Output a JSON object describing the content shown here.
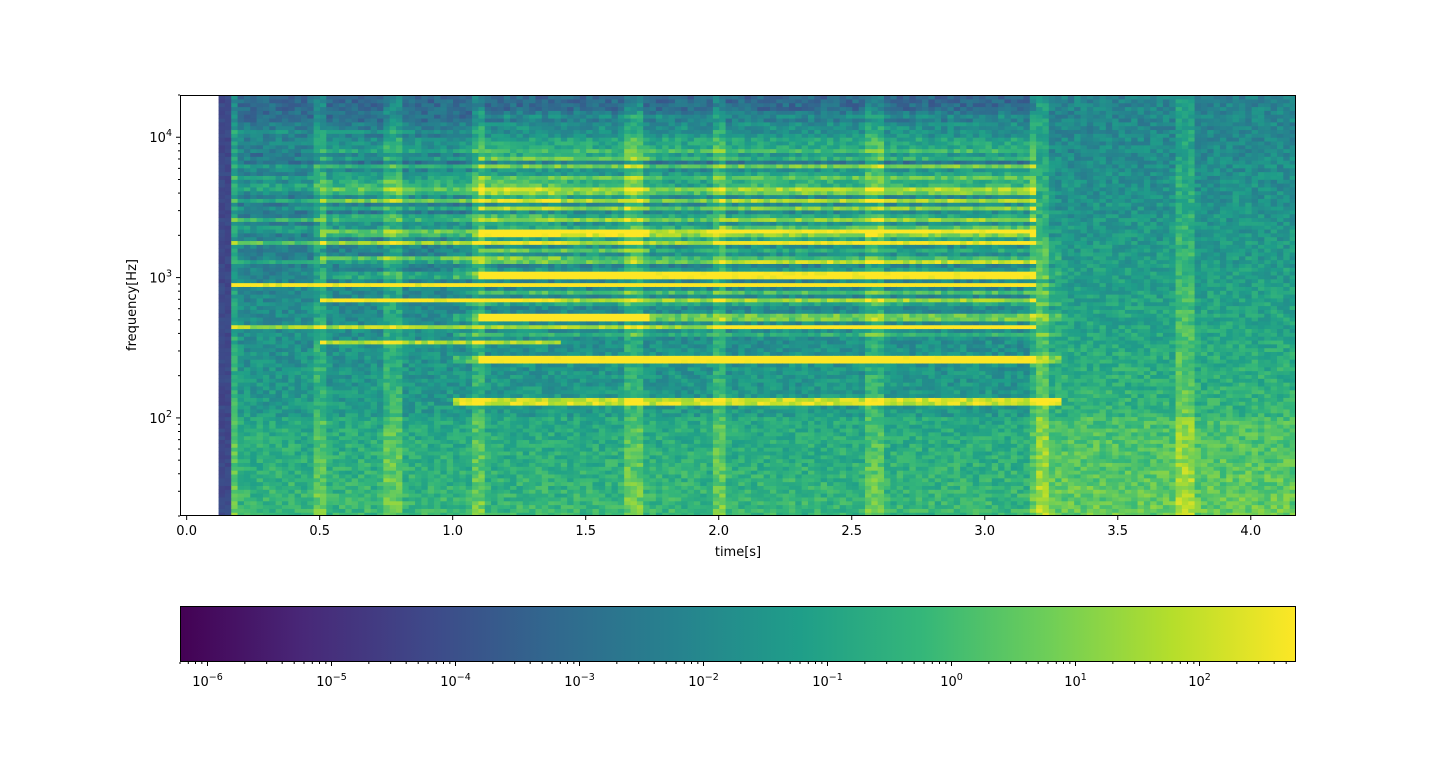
{
  "chart_data": {
    "type": "heatmap",
    "title": "",
    "xlabel": "time[s]",
    "ylabel": "frequency[Hz]",
    "xlim": [
      -0.025,
      4.17
    ],
    "ylim": [
      20,
      20000
    ],
    "yscale": "log",
    "data_start_time": 0.12,
    "x_ticks": [
      0.0,
      0.5,
      1.0,
      1.5,
      2.0,
      2.5,
      3.0,
      3.5,
      4.0
    ],
    "x_tick_labels": [
      "0.0",
      "0.5",
      "1.0",
      "1.5",
      "2.0",
      "2.5",
      "3.0",
      "3.5",
      "4.0"
    ],
    "y_ticks": [
      100,
      1000,
      10000
    ],
    "y_tick_labels": [
      {
        "base": "10",
        "exp": "2"
      },
      {
        "base": "10",
        "exp": "3"
      },
      {
        "base": "10",
        "exp": "4"
      }
    ],
    "colormap": "viridis",
    "colorbar": {
      "orientation": "horizontal",
      "scale": "log",
      "range": [
        6e-07,
        600
      ],
      "ticks": [
        -6,
        -5,
        -4,
        -3,
        -2,
        -1,
        0,
        1,
        2
      ],
      "tick_labels": [
        {
          "base": "10",
          "exp": "−6"
        },
        {
          "base": "10",
          "exp": "−5"
        },
        {
          "base": "10",
          "exp": "−4"
        },
        {
          "base": "10",
          "exp": "−3"
        },
        {
          "base": "10",
          "exp": "−2"
        },
        {
          "base": "10",
          "exp": "−1"
        },
        {
          "base": "10",
          "exp": "0"
        },
        {
          "base": "10",
          "exp": "1"
        },
        {
          "base": "10",
          "exp": "2"
        }
      ]
    },
    "notes": [
      {
        "start": 0.17,
        "end": 3.2,
        "freq": 440
      },
      {
        "start": 0.17,
        "end": 3.2,
        "freq": 880
      },
      {
        "start": 0.5,
        "end": 1.4,
        "freq": 350
      },
      {
        "start": 0.5,
        "end": 3.2,
        "freq": 700
      },
      {
        "start": 1.1,
        "end": 1.75,
        "freq": 525
      },
      {
        "start": 1.0,
        "end": 3.3,
        "freq": 130
      },
      {
        "start": 1.1,
        "end": 3.2,
        "freq": 260
      },
      {
        "start": 1.1,
        "end": 3.2,
        "freq": 1050
      },
      {
        "start": 2.0,
        "end": 3.2,
        "freq": 440
      }
    ],
    "onsets": [
      0.17,
      0.5,
      0.78,
      1.1,
      1.68,
      2.0,
      2.58,
      3.2,
      3.75
    ]
  },
  "colors": {
    "viridis": [
      "#440154",
      "#482878",
      "#3e4989",
      "#31688e",
      "#26828e",
      "#1f9e89",
      "#35b779",
      "#6ece58",
      "#b5de2b",
      "#fde725"
    ],
    "axis": "#000000"
  }
}
